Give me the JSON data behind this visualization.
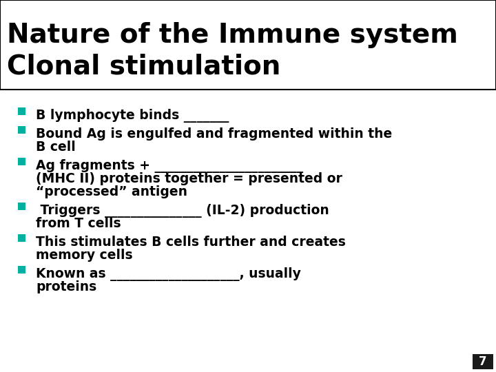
{
  "title_line1": "Nature of the Immune system",
  "title_line2": "Clonal stimulation",
  "title_fontsize": 28,
  "title_color": "#000000",
  "title_bg": "#ffffff",
  "title_border_color": "#000000",
  "body_bg": "#ffffff",
  "bullet_color": "#00b0a0",
  "bullet_text_color": "#000000",
  "bullet_fontsize": 13.5,
  "bullets": [
    "B lymphocyte binds _______",
    "Bound Ag is engulfed and fragmented within the\nB cell",
    "Ag fragments + _______________________\n(MHC II) proteins together = presented or\n“processed” antigen",
    " Triggers _______________ (IL-2) production\nfrom T cells",
    "This stimulates B cells further and creates\nmemory cells",
    "Known as ____________________, usually\nproteins"
  ],
  "page_number": "7",
  "page_num_bg": "#1a1a1a",
  "page_num_color": "#ffffff",
  "page_num_fontsize": 12
}
